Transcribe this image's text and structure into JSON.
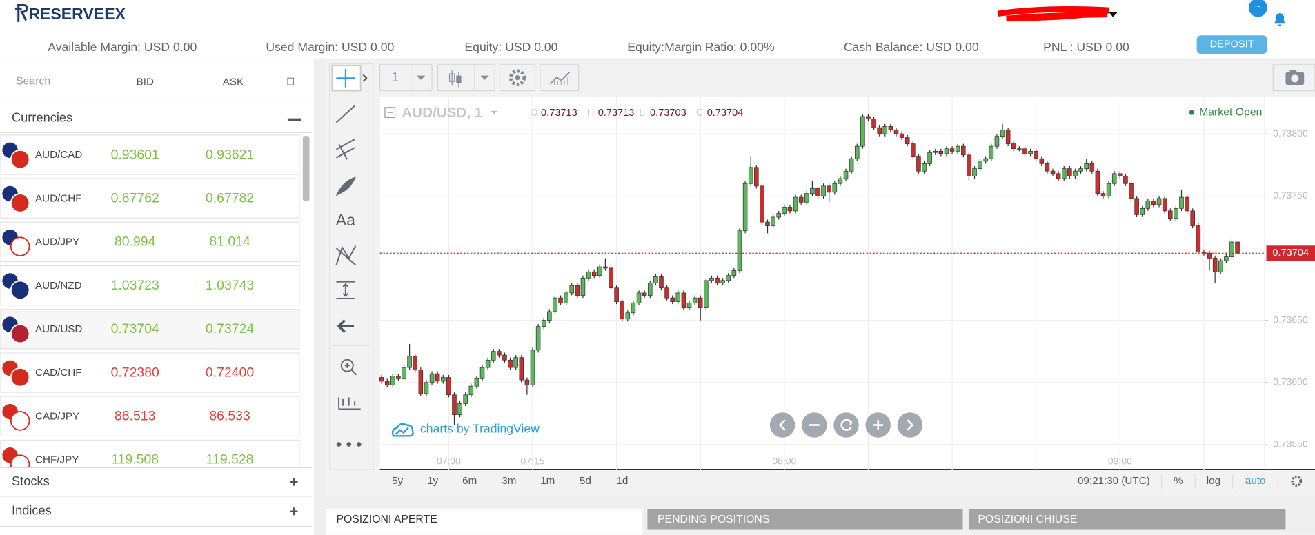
{
  "header": {
    "logo": "RESERVEEX",
    "badge": "~",
    "stats": [
      "Available Margin: USD 0.00",
      "Used Margin: USD  0.00",
      "Equity: USD  0.00",
      "Equity:Margin Ratio: 0.00%",
      "Cash Balance: USD 0.00",
      "PNL : USD  0.00"
    ],
    "deposit": "DEPOSIT"
  },
  "watchlist": {
    "search": "Search",
    "columns": [
      "BID",
      "ASK"
    ],
    "groups": [
      {
        "name": "Currencies",
        "rows": [
          {
            "pair": "AUD/CAD",
            "bid": "0.93601",
            "ask": "0.93621",
            "color": "#7dc242"
          },
          {
            "pair": "AUD/CHF",
            "bid": "0.67762",
            "ask": "0.67782",
            "color": "#7dc242"
          },
          {
            "pair": "AUD/JPY",
            "bid": "80.994",
            "ask": "81.014",
            "color": "#7dc242"
          },
          {
            "pair": "AUD/NZD",
            "bid": "1.03723",
            "ask": "1.03743",
            "color": "#7dc242"
          },
          {
            "pair": "AUD/USD",
            "bid": "0.73704",
            "ask": "0.73724",
            "color": "#7dc242"
          },
          {
            "pair": "CAD/CHF",
            "bid": "0.72380",
            "ask": "0.72400",
            "color": "#e0433a"
          },
          {
            "pair": "CAD/JPY",
            "bid": "86.513",
            "ask": "86.533",
            "color": "#e0433a"
          },
          {
            "pair": "CHF/JPY",
            "bid": "119.508",
            "ask": "119.528",
            "color": "#7dc242"
          }
        ]
      },
      {
        "name": "Stocks"
      },
      {
        "name": "Indices"
      }
    ]
  },
  "toolbar": {
    "interval": "1",
    "text_tool": "Aa"
  },
  "chart_data": {
    "type": "candlestick",
    "title": "AUD/USD, 1",
    "ohlc_labels": [
      "O",
      "H",
      "L",
      "C"
    ],
    "status": "Market Open",
    "watermark": "charts by TradingView",
    "up_color": "#5cb85c",
    "down_color": "#c9302c",
    "last_price_color": "#d0282e",
    "grid": true,
    "ylim": [
      0.7353,
      0.7383
    ],
    "yticks": [
      {
        "value": 0.738,
        "label": "0.73800"
      },
      {
        "value": 0.7375,
        "label": "0.73750"
      },
      {
        "value": 0.7365,
        "label": "0.73650"
      },
      {
        "value": 0.736,
        "label": "0.73600"
      },
      {
        "value": 0.7355,
        "label": "0.73550"
      }
    ],
    "categories": [
      null,
      null,
      null,
      null,
      null,
      null,
      null,
      null,
      null,
      null,
      null,
      null,
      "07:00",
      null,
      null,
      null,
      null,
      null,
      null,
      null,
      null,
      null,
      null,
      null,
      null,
      null,
      null,
      "07:15",
      null,
      null,
      null,
      null,
      null,
      null,
      null,
      null,
      null,
      null,
      null,
      null,
      null,
      null,
      null,
      null,
      null,
      null,
      null,
      null,
      null,
      null,
      null,
      null,
      null,
      null,
      null,
      null,
      null,
      null,
      null,
      null,
      null,
      null,
      null,
      null,
      null,
      null,
      null,
      null,
      null,
      null,
      null,
      null,
      "08:00",
      null,
      null,
      null,
      null,
      null,
      null,
      null,
      null,
      null,
      null,
      null,
      null,
      null,
      null,
      null,
      null,
      null,
      null,
      null,
      null,
      null,
      null,
      null,
      null,
      null,
      null,
      null,
      null,
      null,
      null,
      null,
      null,
      null,
      null,
      null,
      null,
      null,
      null,
      null,
      null,
      null,
      null,
      null,
      null,
      null,
      null,
      null,
      null,
      null,
      null,
      null,
      null,
      null,
      null,
      null,
      null,
      null,
      null,
      null,
      "09:00",
      null,
      null,
      null,
      null,
      null,
      null,
      null,
      null,
      null,
      null,
      null,
      null,
      null,
      null,
      null,
      null,
      null,
      null,
      null,
      null,
      null
    ],
    "candles": [
      [
        0.73604,
        0.73606,
        0.73599,
        0.73601
      ],
      [
        0.73601,
        0.73603,
        0.73596,
        0.73598
      ],
      [
        0.73598,
        0.73607,
        0.73596,
        0.73605
      ],
      [
        0.73605,
        0.73607,
        0.73601,
        0.73603
      ],
      [
        0.73603,
        0.73614,
        0.73601,
        0.73612
      ],
      [
        0.73612,
        0.73631,
        0.7361,
        0.73621
      ],
      [
        0.73621,
        0.73623,
        0.73608,
        0.7361
      ],
      [
        0.7361,
        0.73612,
        0.73589,
        0.73591
      ],
      [
        0.73591,
        0.73602,
        0.73589,
        0.736
      ],
      [
        0.736,
        0.73609,
        0.73598,
        0.73607
      ],
      [
        0.73607,
        0.73609,
        0.73599,
        0.73601
      ],
      [
        0.73601,
        0.73606,
        0.73599,
        0.73604
      ],
      [
        0.73604,
        0.73606,
        0.73588,
        0.7359
      ],
      [
        0.7359,
        0.73592,
        0.73566,
        0.73574
      ],
      [
        0.73574,
        0.73585,
        0.73572,
        0.73583
      ],
      [
        0.73583,
        0.73592,
        0.73581,
        0.7359
      ],
      [
        0.7359,
        0.73599,
        0.73588,
        0.73597
      ],
      [
        0.73597,
        0.73605,
        0.73595,
        0.73603
      ],
      [
        0.73603,
        0.73614,
        0.73601,
        0.73612
      ],
      [
        0.73612,
        0.7362,
        0.7361,
        0.73618
      ],
      [
        0.73618,
        0.73627,
        0.73616,
        0.73625
      ],
      [
        0.73625,
        0.73627,
        0.7362,
        0.73622
      ],
      [
        0.73622,
        0.73624,
        0.73616,
        0.73618
      ],
      [
        0.73618,
        0.7362,
        0.7361,
        0.73612
      ],
      [
        0.73612,
        0.73622,
        0.7361,
        0.7362
      ],
      [
        0.7362,
        0.73622,
        0.736,
        0.73602
      ],
      [
        0.73602,
        0.73604,
        0.7359,
        0.73598
      ],
      [
        0.73598,
        0.73628,
        0.73596,
        0.73626
      ],
      [
        0.73626,
        0.73647,
        0.73624,
        0.73645
      ],
      [
        0.73645,
        0.73652,
        0.73643,
        0.7365
      ],
      [
        0.7365,
        0.73659,
        0.73648,
        0.73657
      ],
      [
        0.73657,
        0.7367,
        0.73655,
        0.73668
      ],
      [
        0.73668,
        0.7367,
        0.73662,
        0.73664
      ],
      [
        0.73664,
        0.73674,
        0.73662,
        0.73672
      ],
      [
        0.73672,
        0.7368,
        0.7367,
        0.73678
      ],
      [
        0.73678,
        0.7368,
        0.73668,
        0.7367
      ],
      [
        0.7367,
        0.73686,
        0.73668,
        0.73684
      ],
      [
        0.73684,
        0.73691,
        0.73682,
        0.73689
      ],
      [
        0.73689,
        0.73691,
        0.73684,
        0.73686
      ],
      [
        0.73686,
        0.73695,
        0.73684,
        0.73693
      ],
      [
        0.73693,
        0.737,
        0.7369,
        0.73692
      ],
      [
        0.73692,
        0.73694,
        0.73674,
        0.73676
      ],
      [
        0.73676,
        0.73678,
        0.73663,
        0.73665
      ],
      [
        0.73665,
        0.73667,
        0.73649,
        0.73651
      ],
      [
        0.73651,
        0.73658,
        0.73649,
        0.73656
      ],
      [
        0.73656,
        0.73666,
        0.73654,
        0.73664
      ],
      [
        0.73664,
        0.73674,
        0.73662,
        0.73672
      ],
      [
        0.73672,
        0.73674,
        0.73668,
        0.7367
      ],
      [
        0.7367,
        0.73682,
        0.73668,
        0.7368
      ],
      [
        0.7368,
        0.73687,
        0.73678,
        0.73685
      ],
      [
        0.73685,
        0.73687,
        0.73674,
        0.73676
      ],
      [
        0.73676,
        0.73678,
        0.73666,
        0.73668
      ],
      [
        0.73668,
        0.7367,
        0.73663,
        0.73665
      ],
      [
        0.73665,
        0.73674,
        0.73663,
        0.73672
      ],
      [
        0.73672,
        0.73674,
        0.73658,
        0.7366
      ],
      [
        0.7366,
        0.73666,
        0.73658,
        0.73664
      ],
      [
        0.73664,
        0.7367,
        0.73662,
        0.73668
      ],
      [
        0.73668,
        0.7367,
        0.7365,
        0.7366
      ],
      [
        0.7366,
        0.73684,
        0.73658,
        0.73682
      ],
      [
        0.73682,
        0.73686,
        0.7368,
        0.73684
      ],
      [
        0.73684,
        0.73686,
        0.73678,
        0.7368
      ],
      [
        0.7368,
        0.73684,
        0.73678,
        0.73682
      ],
      [
        0.73682,
        0.73688,
        0.7368,
        0.73686
      ],
      [
        0.73686,
        0.73692,
        0.73684,
        0.7369
      ],
      [
        0.7369,
        0.73724,
        0.73688,
        0.73722
      ],
      [
        0.73722,
        0.73762,
        0.7372,
        0.7376
      ],
      [
        0.7376,
        0.73782,
        0.73758,
        0.73773
      ],
      [
        0.73773,
        0.73775,
        0.73756,
        0.73758
      ],
      [
        0.73758,
        0.7376,
        0.73727,
        0.73729
      ],
      [
        0.73729,
        0.73731,
        0.7372,
        0.73726
      ],
      [
        0.73726,
        0.73735,
        0.73724,
        0.73733
      ],
      [
        0.73733,
        0.73738,
        0.73731,
        0.73736
      ],
      [
        0.73736,
        0.73743,
        0.73734,
        0.73741
      ],
      [
        0.73741,
        0.73743,
        0.73736,
        0.73738
      ],
      [
        0.73738,
        0.73751,
        0.73736,
        0.73749
      ],
      [
        0.73749,
        0.73751,
        0.73743,
        0.73745
      ],
      [
        0.73745,
        0.73754,
        0.73743,
        0.73752
      ],
      [
        0.73752,
        0.73762,
        0.7375,
        0.73756
      ],
      [
        0.73756,
        0.73758,
        0.73748,
        0.7375
      ],
      [
        0.7375,
        0.7376,
        0.73748,
        0.73758
      ],
      [
        0.73758,
        0.7376,
        0.73745,
        0.73753
      ],
      [
        0.73753,
        0.73762,
        0.73751,
        0.7376
      ],
      [
        0.7376,
        0.73766,
        0.73758,
        0.73764
      ],
      [
        0.73764,
        0.73772,
        0.73762,
        0.7377
      ],
      [
        0.7377,
        0.73782,
        0.73768,
        0.7378
      ],
      [
        0.7378,
        0.73792,
        0.73778,
        0.7379
      ],
      [
        0.7379,
        0.73816,
        0.73788,
        0.73814
      ],
      [
        0.73814,
        0.73816,
        0.7381,
        0.73812
      ],
      [
        0.73812,
        0.73814,
        0.73803,
        0.73805
      ],
      [
        0.73805,
        0.73807,
        0.73798,
        0.738
      ],
      [
        0.738,
        0.73808,
        0.73798,
        0.73806
      ],
      [
        0.73806,
        0.73808,
        0.73801,
        0.73803
      ],
      [
        0.73803,
        0.73805,
        0.73798,
        0.738
      ],
      [
        0.738,
        0.73802,
        0.73795,
        0.73797
      ],
      [
        0.73797,
        0.73799,
        0.7379,
        0.73792
      ],
      [
        0.73792,
        0.73794,
        0.7378,
        0.73782
      ],
      [
        0.73782,
        0.73784,
        0.73768,
        0.7377
      ],
      [
        0.7377,
        0.73778,
        0.73768,
        0.73776
      ],
      [
        0.73776,
        0.73787,
        0.73774,
        0.73785
      ],
      [
        0.73785,
        0.73788,
        0.73783,
        0.73786
      ],
      [
        0.73786,
        0.73788,
        0.73782,
        0.73784
      ],
      [
        0.73784,
        0.7379,
        0.73782,
        0.73788
      ],
      [
        0.73788,
        0.7379,
        0.73784,
        0.73786
      ],
      [
        0.73786,
        0.73792,
        0.73784,
        0.7379
      ],
      [
        0.7379,
        0.73792,
        0.73781,
        0.73783
      ],
      [
        0.73783,
        0.73785,
        0.73762,
        0.73766
      ],
      [
        0.73766,
        0.73774,
        0.73764,
        0.73772
      ],
      [
        0.73772,
        0.7378,
        0.7377,
        0.73778
      ],
      [
        0.73778,
        0.73782,
        0.73776,
        0.7378
      ],
      [
        0.7378,
        0.73792,
        0.73778,
        0.7379
      ],
      [
        0.7379,
        0.738,
        0.73788,
        0.73798
      ],
      [
        0.73798,
        0.73808,
        0.73796,
        0.73803
      ],
      [
        0.73803,
        0.73805,
        0.7379,
        0.73792
      ],
      [
        0.73792,
        0.73794,
        0.73786,
        0.73788
      ],
      [
        0.73788,
        0.7379,
        0.73786,
        0.73788
      ],
      [
        0.73788,
        0.7379,
        0.73782,
        0.73784
      ],
      [
        0.73784,
        0.73788,
        0.73782,
        0.73786
      ],
      [
        0.73786,
        0.73788,
        0.73778,
        0.7378
      ],
      [
        0.7378,
        0.73782,
        0.73774,
        0.73776
      ],
      [
        0.73776,
        0.73778,
        0.73768,
        0.7377
      ],
      [
        0.7377,
        0.73772,
        0.73766,
        0.73768
      ],
      [
        0.73768,
        0.7377,
        0.73762,
        0.73764
      ],
      [
        0.73764,
        0.73774,
        0.73762,
        0.73772
      ],
      [
        0.73772,
        0.73774,
        0.73764,
        0.73766
      ],
      [
        0.73766,
        0.73772,
        0.73764,
        0.7377
      ],
      [
        0.7377,
        0.73774,
        0.73768,
        0.73772
      ],
      [
        0.73772,
        0.7378,
        0.7377,
        0.73776
      ],
      [
        0.73776,
        0.73778,
        0.73768,
        0.7377
      ],
      [
        0.7377,
        0.73772,
        0.7375,
        0.73752
      ],
      [
        0.73752,
        0.73754,
        0.73748,
        0.7375
      ],
      [
        0.7375,
        0.73762,
        0.73748,
        0.7376
      ],
      [
        0.7376,
        0.7377,
        0.73758,
        0.73768
      ],
      [
        0.73768,
        0.7377,
        0.73764,
        0.73766
      ],
      [
        0.73766,
        0.73768,
        0.73758,
        0.7376
      ],
      [
        0.7376,
        0.73762,
        0.73746,
        0.73748
      ],
      [
        0.73748,
        0.7375,
        0.73733,
        0.73735
      ],
      [
        0.73735,
        0.73742,
        0.73733,
        0.7374
      ],
      [
        0.7374,
        0.73748,
        0.73738,
        0.73746
      ],
      [
        0.73746,
        0.73748,
        0.73741,
        0.73743
      ],
      [
        0.73743,
        0.7375,
        0.73741,
        0.73748
      ],
      [
        0.73748,
        0.7375,
        0.73736,
        0.73738
      ],
      [
        0.73738,
        0.7374,
        0.7373,
        0.73732
      ],
      [
        0.73732,
        0.73742,
        0.7373,
        0.7374
      ],
      [
        0.7374,
        0.73755,
        0.73738,
        0.73749
      ],
      [
        0.73749,
        0.73751,
        0.73736,
        0.73738
      ],
      [
        0.73738,
        0.7374,
        0.73724,
        0.73726
      ],
      [
        0.73726,
        0.73728,
        0.73703,
        0.73705
      ],
      [
        0.73705,
        0.73707,
        0.73702,
        0.73704
      ],
      [
        0.73704,
        0.73706,
        0.7369,
        0.737
      ],
      [
        0.737,
        0.73702,
        0.7368,
        0.73689
      ],
      [
        0.73689,
        0.737,
        0.73687,
        0.73698
      ],
      [
        0.73698,
        0.73703,
        0.73696,
        0.73701
      ],
      [
        0.73701,
        0.73715,
        0.73699,
        0.73713
      ],
      [
        0.73713,
        0.73713,
        0.73703,
        0.73704
      ]
    ]
  },
  "range_buttons": [
    "5y",
    "1y",
    "6m",
    "3m",
    "1m",
    "5d",
    "1d"
  ],
  "status_bar": {
    "clock": "09:21:30 (UTC)",
    "percent": "%",
    "log": "log",
    "auto": "auto"
  },
  "tabs": [
    "POSIZIONI APERTE",
    "PENDING POSITIONS",
    "POSIZIONI CHIUSE"
  ]
}
